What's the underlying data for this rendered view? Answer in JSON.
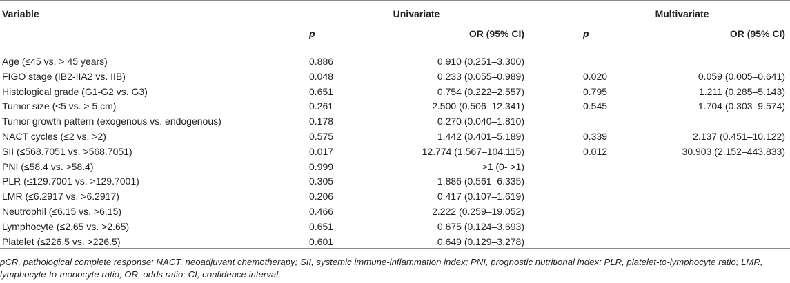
{
  "headers": {
    "variable": "Variable",
    "univariate": "Univariate",
    "multivariate": "Multivariate",
    "p": "p",
    "or": "OR (95% CI)"
  },
  "rows": [
    {
      "variable": "Age (≤45 vs. > 45 years)",
      "uni_p": "0.886",
      "uni_or": "0.910 (0.251–3.300)",
      "multi_p": "",
      "multi_or": ""
    },
    {
      "variable": "FIGO stage (IB2-IIA2 vs. IIB)",
      "uni_p": "0.048",
      "uni_or": "0.233 (0.055–0.989)",
      "multi_p": "0.020",
      "multi_or": "0.059 (0.005–0.641)"
    },
    {
      "variable": "Histological grade (G1-G2 vs. G3)",
      "uni_p": "0.651",
      "uni_or": "0.754 (0.222–2.557)",
      "multi_p": "0.795",
      "multi_or": "1.211 (0.285–5.143)"
    },
    {
      "variable": "Tumor size (≤5 vs. > 5 cm)",
      "uni_p": "0.261",
      "uni_or": "2.500 (0.506–12.341)",
      "multi_p": "0.545",
      "multi_or": "1.704 (0.303–9.574)"
    },
    {
      "variable": "Tumor growth pattern (exogenous vs. endogenous)",
      "uni_p": "0.178",
      "uni_or": "0.270 (0.040–1.810)",
      "multi_p": "",
      "multi_or": ""
    },
    {
      "variable": "NACT cycles (≤2 vs. >2)",
      "uni_p": "0.575",
      "uni_or": "1.442 (0.401–5.189)",
      "multi_p": "0.339",
      "multi_or": "2.137 (0.451–10.122)"
    },
    {
      "variable": "SII (≤568.7051 vs. >568.7051)",
      "uni_p": "0.017",
      "uni_or": "12.774 (1.567–104.115)",
      "multi_p": "0.012",
      "multi_or": "30.903 (2.152–443.833)"
    },
    {
      "variable": "PNI (≤58.4 vs. >58.4)",
      "uni_p": "0.999",
      "uni_or": ">1 (0- >1)",
      "multi_p": "",
      "multi_or": ""
    },
    {
      "variable": "PLR (≤129.7001 vs. >129.7001)",
      "uni_p": "0.305",
      "uni_or": "1.886 (0.561–6.335)",
      "multi_p": "",
      "multi_or": ""
    },
    {
      "variable": "LMR (≤6.2917 vs. >6.2917)",
      "uni_p": "0.206",
      "uni_or": "0.417 (0.107–1.619)",
      "multi_p": "",
      "multi_or": ""
    },
    {
      "variable": "Neutrophil (≤6.15 vs. >6.15)",
      "uni_p": "0.466",
      "uni_or": "2.222 (0.259–19.052)",
      "multi_p": "",
      "multi_or": ""
    },
    {
      "variable": "Lymphocyte (≤2.65 vs. >2.65)",
      "uni_p": "0.651",
      "uni_or": "0.675 (0.124–3.693)",
      "multi_p": "",
      "multi_or": ""
    },
    {
      "variable": "Platelet (≤226.5 vs. >226.5)",
      "uni_p": "0.601",
      "uni_or": "0.649 (0.129–3.278)",
      "multi_p": "",
      "multi_or": ""
    }
  ],
  "footnote": "pCR, pathological complete response; NACT, neoadjuvant chemotherapy; SII, systemic immune-inflammation index; PNI, prognostic nutritional index; PLR, platelet-to-lymphocyte ratio; LMR, lymphocyte-to-monocyte ratio; OR, odds ratio; CI, confidence interval."
}
